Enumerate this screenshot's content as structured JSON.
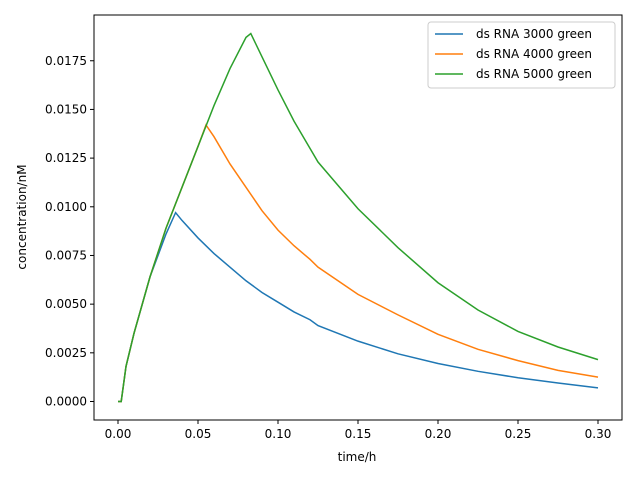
{
  "chart_data": {
    "type": "line",
    "title": "",
    "xlabel": "time/h",
    "ylabel": "concentration/nM",
    "xlim": [
      -0.015,
      0.315
    ],
    "ylim": [
      -0.00095,
      0.01985
    ],
    "xticks": [
      0.0,
      0.05,
      0.1,
      0.15,
      0.2,
      0.25,
      0.3
    ],
    "xtick_labels": [
      "0.00",
      "0.05",
      "0.10",
      "0.15",
      "0.20",
      "0.25",
      "0.30"
    ],
    "yticks": [
      0.0,
      0.0025,
      0.005,
      0.0075,
      0.01,
      0.0125,
      0.015,
      0.0175
    ],
    "ytick_labels": [
      "0.0000",
      "0.0025",
      "0.0050",
      "0.0075",
      "0.0100",
      "0.0125",
      "0.0150",
      "0.0175"
    ],
    "grid": false,
    "legend_position": "top-right",
    "series": [
      {
        "name": "ds RNA 3000 green",
        "color": "#1f77b4",
        "points": [
          [
            0.0,
            0.0
          ],
          [
            0.002,
            0.0
          ],
          [
            0.005,
            0.0018
          ],
          [
            0.01,
            0.0035
          ],
          [
            0.02,
            0.0064
          ],
          [
            0.03,
            0.0086
          ],
          [
            0.036,
            0.0097
          ],
          [
            0.04,
            0.0093
          ],
          [
            0.05,
            0.0084
          ],
          [
            0.06,
            0.0076
          ],
          [
            0.07,
            0.0069
          ],
          [
            0.08,
            0.0062
          ],
          [
            0.09,
            0.0056
          ],
          [
            0.1,
            0.0051
          ],
          [
            0.11,
            0.0046
          ],
          [
            0.12,
            0.0042
          ],
          [
            0.125,
            0.0039
          ],
          [
            0.15,
            0.0031
          ],
          [
            0.175,
            0.00245
          ],
          [
            0.2,
            0.00195
          ],
          [
            0.225,
            0.00155
          ],
          [
            0.25,
            0.00122
          ],
          [
            0.275,
            0.00095
          ],
          [
            0.3,
            0.0007
          ]
        ]
      },
      {
        "name": "ds RNA 4000 green",
        "color": "#ff7f0e",
        "points": [
          [
            0.0,
            0.0
          ],
          [
            0.002,
            0.0
          ],
          [
            0.005,
            0.0018
          ],
          [
            0.01,
            0.0035
          ],
          [
            0.02,
            0.0064
          ],
          [
            0.03,
            0.0089
          ],
          [
            0.04,
            0.011
          ],
          [
            0.05,
            0.0131
          ],
          [
            0.055,
            0.0142
          ],
          [
            0.06,
            0.0136
          ],
          [
            0.07,
            0.0122
          ],
          [
            0.08,
            0.011
          ],
          [
            0.09,
            0.0098
          ],
          [
            0.1,
            0.0088
          ],
          [
            0.11,
            0.008
          ],
          [
            0.12,
            0.0073
          ],
          [
            0.125,
            0.0069
          ],
          [
            0.15,
            0.0055
          ],
          [
            0.175,
            0.00445
          ],
          [
            0.2,
            0.00345
          ],
          [
            0.225,
            0.00268
          ],
          [
            0.25,
            0.0021
          ],
          [
            0.275,
            0.0016
          ],
          [
            0.3,
            0.00125
          ]
        ]
      },
      {
        "name": "ds RNA 5000 green",
        "color": "#2ca02c",
        "points": [
          [
            0.0,
            0.0
          ],
          [
            0.002,
            0.0
          ],
          [
            0.005,
            0.0018
          ],
          [
            0.01,
            0.0035
          ],
          [
            0.02,
            0.0064
          ],
          [
            0.03,
            0.0089
          ],
          [
            0.04,
            0.011
          ],
          [
            0.05,
            0.0131
          ],
          [
            0.06,
            0.0152
          ],
          [
            0.07,
            0.0171
          ],
          [
            0.08,
            0.0187
          ],
          [
            0.083,
            0.0189
          ],
          [
            0.09,
            0.0177
          ],
          [
            0.1,
            0.016
          ],
          [
            0.11,
            0.0144
          ],
          [
            0.12,
            0.013
          ],
          [
            0.125,
            0.0123
          ],
          [
            0.15,
            0.0099
          ],
          [
            0.175,
            0.0079
          ],
          [
            0.2,
            0.0061
          ],
          [
            0.225,
            0.0047
          ],
          [
            0.25,
            0.0036
          ],
          [
            0.275,
            0.0028
          ],
          [
            0.3,
            0.00215
          ]
        ]
      }
    ]
  }
}
